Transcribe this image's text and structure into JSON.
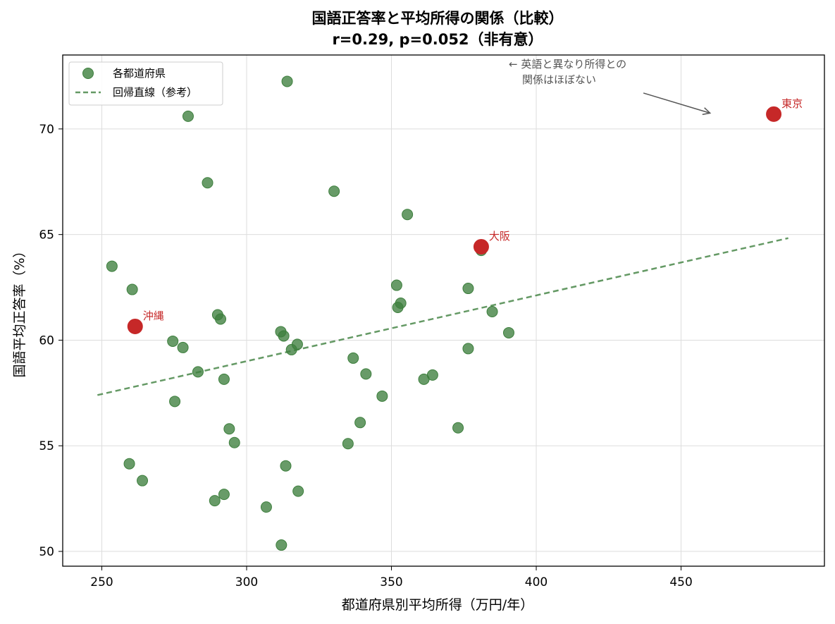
{
  "chart_data": {
    "type": "scatter",
    "title_line1": "国語正答率と平均所得の関係（比較）",
    "title_line2": "r=0.29, p=0.052（非有意）",
    "xlabel": "都道府県別平均所得（万円/年）",
    "ylabel": "国語平均正答率（%）",
    "xlim": [
      236.5,
      499.5
    ],
    "ylim": [
      49.3,
      73.5
    ],
    "xticks": [
      250,
      300,
      350,
      400,
      450
    ],
    "yticks": [
      50,
      55,
      60,
      65,
      70
    ],
    "grid": true,
    "legend_position": "top-left",
    "colors": {
      "points": "#3d7f3d",
      "regression": "#3d7f3d",
      "highlight": "#c62828",
      "annotation": "#555555"
    },
    "series": [
      {
        "name": "各都道府県",
        "points": [
          [
            253.5,
            63.5
          ],
          [
            260.5,
            62.4
          ],
          [
            259.5,
            54.15
          ],
          [
            264.0,
            53.35
          ],
          [
            274.5,
            59.95
          ],
          [
            275.2,
            57.1
          ],
          [
            278.0,
            59.65
          ],
          [
            279.8,
            70.6
          ],
          [
            283.2,
            58.5
          ],
          [
            286.5,
            67.45
          ],
          [
            289.0,
            52.4
          ],
          [
            290.0,
            61.2
          ],
          [
            291.0,
            61.0
          ],
          [
            292.2,
            58.15
          ],
          [
            292.2,
            52.7
          ],
          [
            294.0,
            55.8
          ],
          [
            295.8,
            55.15
          ],
          [
            306.8,
            52.1
          ],
          [
            311.8,
            60.4
          ],
          [
            312.0,
            50.3
          ],
          [
            312.8,
            60.2
          ],
          [
            313.5,
            54.05
          ],
          [
            314.0,
            72.25
          ],
          [
            315.5,
            59.55
          ],
          [
            317.5,
            59.8
          ],
          [
            317.8,
            52.85
          ],
          [
            330.2,
            67.05
          ],
          [
            335.0,
            55.1
          ],
          [
            336.8,
            59.15
          ],
          [
            339.2,
            56.1
          ],
          [
            341.2,
            58.4
          ],
          [
            346.8,
            57.35
          ],
          [
            351.8,
            62.6
          ],
          [
            352.2,
            61.55
          ],
          [
            353.2,
            61.75
          ],
          [
            355.5,
            65.95
          ],
          [
            361.2,
            58.15
          ],
          [
            364.2,
            58.35
          ],
          [
            373.0,
            55.85
          ],
          [
            376.5,
            62.45
          ],
          [
            376.5,
            59.6
          ],
          [
            381.0,
            64.25
          ],
          [
            384.8,
            61.35
          ],
          [
            390.5,
            60.35
          ]
        ]
      }
    ],
    "regression": {
      "name": "回帰直線（参考）",
      "x_range": [
        248.5,
        487.0
      ],
      "y_at_start": 57.4,
      "y_at_end": 64.83
    },
    "highlights": [
      {
        "label": "東京",
        "x": 482.0,
        "y": 70.7
      },
      {
        "label": "大阪",
        "x": 381.0,
        "y": 64.42
      },
      {
        "label": "沖縄",
        "x": 261.5,
        "y": 60.65
      }
    ],
    "annotation": {
      "line1": "← 英語と異なり所得との",
      "line2": "関係はほぼない",
      "arrow_tip": [
        460.0,
        70.75
      ],
      "arrow_tail": [
        437.0,
        71.7
      ]
    }
  }
}
